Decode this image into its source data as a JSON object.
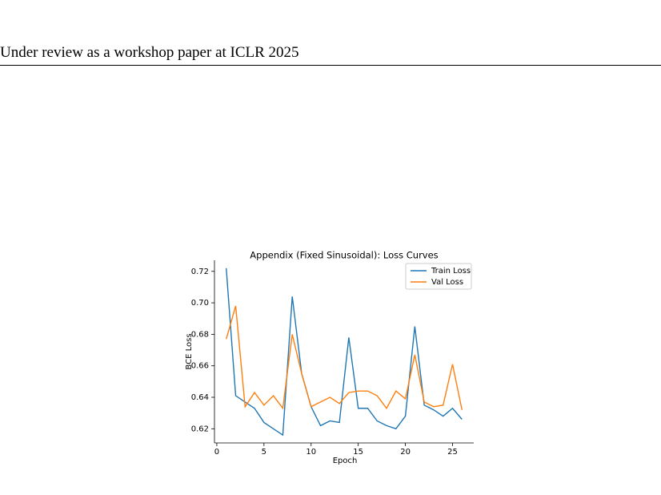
{
  "header": {
    "title": "Under review as a workshop paper at ICLR 2025"
  },
  "chart_data": {
    "type": "line",
    "title": "Appendix (Fixed Sinusoidal): Loss Curves",
    "x_label": "Epoch",
    "y_label": "BCE Loss",
    "x": [
      1,
      2,
      3,
      4,
      5,
      6,
      7,
      8,
      9,
      10,
      11,
      12,
      13,
      14,
      15,
      16,
      17,
      18,
      19,
      20,
      21,
      22,
      23,
      24,
      25,
      26
    ],
    "series": [
      {
        "name": "Train Loss",
        "color": "#1f77b4",
        "values": [
          0.722,
          0.641,
          0.637,
          0.633,
          0.624,
          0.62,
          0.616,
          0.704,
          0.655,
          0.634,
          0.622,
          0.625,
          0.624,
          0.678,
          0.633,
          0.633,
          0.625,
          0.622,
          0.62,
          0.628,
          0.685,
          0.635,
          0.632,
          0.628,
          0.633,
          0.626
        ]
      },
      {
        "name": "Val Loss",
        "color": "#ff7f0e",
        "values": [
          0.677,
          0.698,
          0.634,
          0.643,
          0.635,
          0.641,
          0.633,
          0.68,
          0.655,
          0.634,
          0.637,
          0.64,
          0.636,
          0.643,
          0.644,
          0.644,
          0.641,
          0.633,
          0.644,
          0.639,
          0.667,
          0.637,
          0.634,
          0.635,
          0.661,
          0.632
        ]
      }
    ],
    "xlim": [
      -0.25,
      27.25
    ],
    "ylim": [
      0.611,
      0.727
    ],
    "xticks": [
      0,
      5,
      10,
      15,
      20,
      25
    ],
    "yticks": [
      0.62,
      0.64,
      0.66,
      0.68,
      {
        "value": 0.7,
        "label": "0.70"
      },
      0.72
    ],
    "legend": "upper right"
  }
}
